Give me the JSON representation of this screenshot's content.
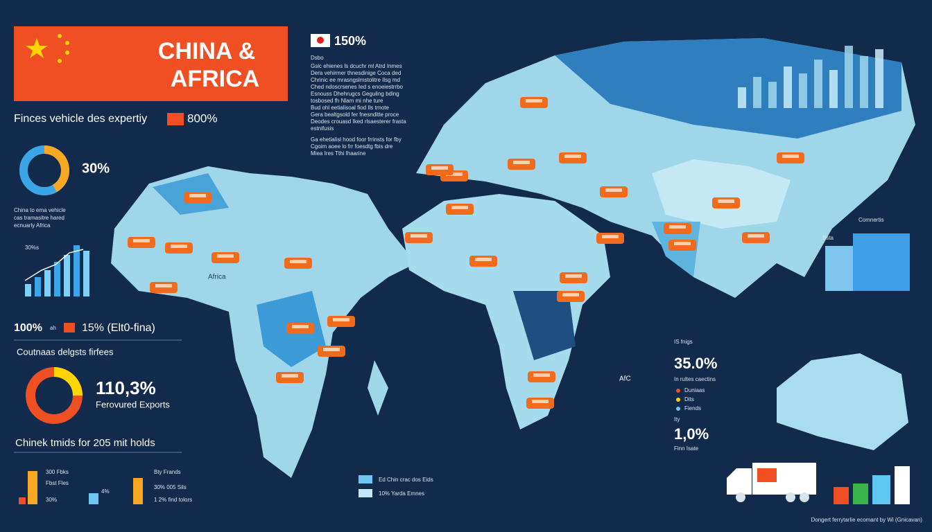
{
  "header": {
    "title_line1": "CHINA &",
    "title_line2": "AFRICA",
    "subtitle": "Finces vehicle des expertiy",
    "subtitle_value": "800%"
  },
  "top_note": {
    "value": "150%",
    "heading": "Dsbo",
    "paragraph": [
      "Gsic ehienes ls dcuchr ml Atrd Inmes",
      "Dera vehirmer thnesdinige Coca ded",
      "Chrinic ee mrasngslmstolitre Ilsg md",
      "Ched ndoscrsenes Ied s enoeiestrrbo",
      "Esnouss Dhehrugcs Geguling bding",
      "tosbosed fh Nlam mi nhe ture",
      "Bud ohl eetialisoal fiod Ils trnote",
      "Gera bealtgsold fer fnesnditte proce",
      "Deodes crouasd Iked rlsaesterer frasta",
      "estnifusis"
    ],
    "paragraph2": [
      "Ga ehetialisl hood foor frrinsts for fby",
      "Cgoim aoee lo frr foesdtg fbis dre",
      "Miea Ires Tthi Ihaarine"
    ]
  },
  "left": {
    "donut1_value": "30%",
    "caption": [
      "China to ema vehicle",
      "cas tramasitre hared",
      "ecnuarly Africa"
    ],
    "chart_label": "30%s",
    "stat_a": "100%",
    "stat_a_unit": "ah",
    "stat_b": "15% (Elt0-fina)",
    "heading2": "Coutnaas delgsts firfees",
    "donut2_value": "110,3%",
    "donut2_label": "Ferovured Exports",
    "heading3": "Chinek tmids for 205 mit holds",
    "mini1": [
      "300 Fbks",
      "Fbst Fles",
      "30%"
    ],
    "mini1_side": "4%",
    "mini2": [
      "Bty Frands",
      "30% 005 Sils",
      "1 2% find tolors"
    ]
  },
  "map_labels": {
    "africa": "Africa",
    "afc": "AfC"
  },
  "right": {
    "label": "Comnertis",
    "chart_label": "Bsta",
    "stat1_label": "IS fnigs",
    "stat1": "35.0%",
    "stat1_caption": "In rultes caectins",
    "legend": [
      "Duniaas",
      "Dits",
      "Fiends"
    ],
    "stat2_label": "Ity",
    "stat2": "1,0%",
    "stat2_caption": "Finn Isate"
  },
  "bottom": {
    "legend": [
      "Ed Chin crac dos Eids",
      "10% Yarda Emnes"
    ],
    "footer": "Dongert ferrytarlie ecomant by  Wi (Gnicavan)"
  }
}
